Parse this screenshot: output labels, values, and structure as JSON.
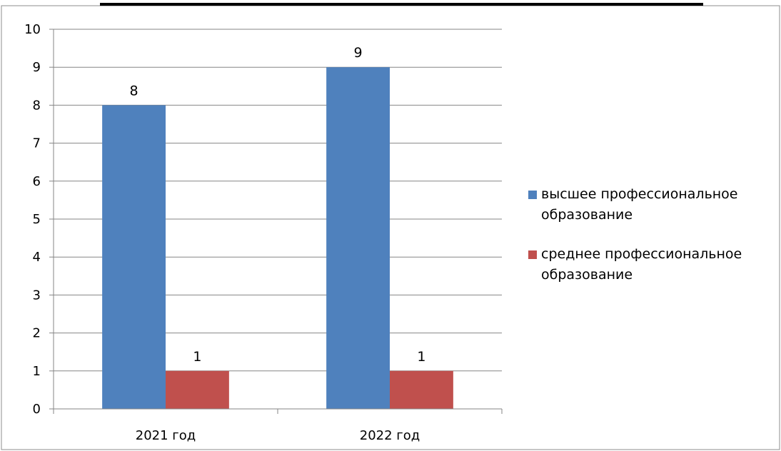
{
  "chart_data": {
    "type": "bar",
    "title": "",
    "xlabel": "",
    "ylabel": "",
    "categories": [
      "2021 год",
      "2022 год"
    ],
    "series": [
      {
        "name": "высшее профессиональное образование",
        "values": [
          8,
          9
        ],
        "color": "#4f81bd"
      },
      {
        "name": "среднее профессиональное образование",
        "values": [
          1,
          1
        ],
        "color": "#c0504d"
      }
    ],
    "ylim": [
      0,
      10
    ],
    "yticks": [
      0,
      1,
      2,
      3,
      4,
      5,
      6,
      7,
      8,
      9,
      10
    ],
    "data_labels": true,
    "grid": true,
    "legend_position": "right"
  }
}
